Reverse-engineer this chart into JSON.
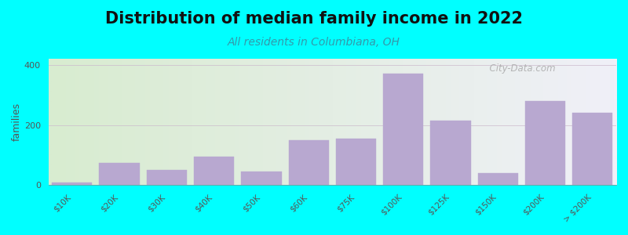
{
  "title": "Distribution of median family income in 2022",
  "subtitle": "All residents in Columbiana, OH",
  "ylabel": "families",
  "background_outer": "#00FFFF",
  "background_inner_left": "#d8ecd0",
  "background_inner_right": "#f0f0f8",
  "bar_color": "#b8a8d0",
  "bar_edge_color": "#b8a8d0",
  "categories": [
    "$10K",
    "$20K",
    "$30K",
    "$40K",
    "$50K",
    "$60K",
    "$75K",
    "$100K",
    "$125K",
    "$150K",
    "$200K",
    "> $200K"
  ],
  "values": [
    10,
    75,
    50,
    95,
    45,
    150,
    155,
    370,
    215,
    40,
    280,
    240
  ],
  "ylim": [
    0,
    420
  ],
  "yticks": [
    0,
    200,
    400
  ],
  "watermark": "  City-Data.com",
  "title_fontsize": 15,
  "subtitle_fontsize": 10,
  "ylabel_fontsize": 9
}
